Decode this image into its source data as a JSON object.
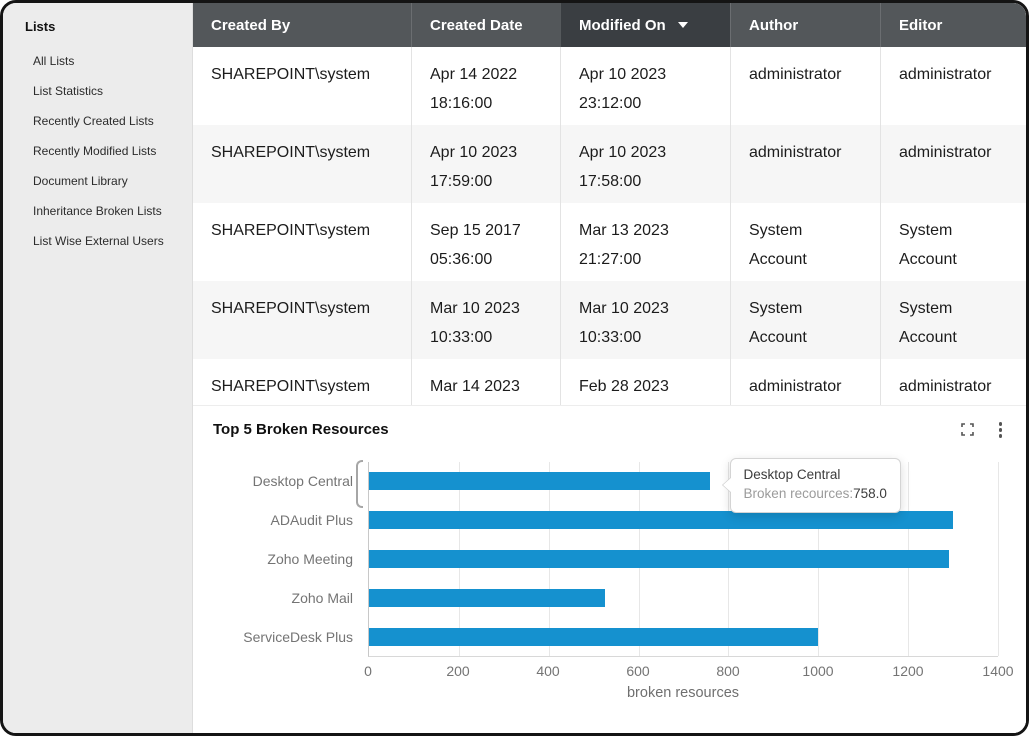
{
  "sidebar": {
    "title": "Lists",
    "items": [
      "All Lists",
      "List Statistics",
      "Recently Created Lists",
      "Recently Modified Lists",
      "Document Library",
      "Inheritance Broken Lists",
      "List Wise External Users"
    ]
  },
  "table": {
    "columns": [
      "Created By",
      "Created Date",
      "Modified On",
      "Author",
      "Editor"
    ],
    "sorted_column": "Modified On",
    "sort_indicator": "▼",
    "rows": [
      {
        "created_by": "SHAREPOINT\\system",
        "created_date": "Apr 14 2022",
        "created_time": "18:16:00",
        "modified_date": "Apr 10 2023",
        "modified_time": "23:12:00",
        "author": "administrator",
        "editor": "administrator"
      },
      {
        "created_by": "SHAREPOINT\\system",
        "created_date": "Apr 10 2023",
        "created_time": "17:59:00",
        "modified_date": "Apr 10 2023",
        "modified_time": "17:58:00",
        "author": "administrator",
        "editor": "administrator"
      },
      {
        "created_by": "SHAREPOINT\\system",
        "created_date": "Sep 15 2017",
        "created_time": "05:36:00",
        "modified_date": "Mar 13 2023",
        "modified_time": "21:27:00",
        "author": "System Account",
        "editor": "System Account"
      },
      {
        "created_by": "SHAREPOINT\\system",
        "created_date": "Mar 10 2023",
        "created_time": "10:33:00",
        "modified_date": "Mar 10 2023",
        "modified_time": "10:33:00",
        "author": "System Account",
        "editor": "System Account"
      },
      {
        "created_by": "SHAREPOINT\\system",
        "created_date": "Mar 14 2023",
        "created_time": "",
        "modified_date": "Feb 28 2023",
        "modified_time": "",
        "author": "administrator",
        "editor": "administrator"
      }
    ]
  },
  "chart": {
    "title": "Top 5 Broken Resources",
    "icons": {
      "expand": "expand-icon",
      "menu": "kebab-menu-icon"
    },
    "tooltip": {
      "title": "Desktop Central",
      "label": "Broken recources:",
      "value": "758.0"
    }
  },
  "chart_data": {
    "type": "bar",
    "orientation": "horizontal",
    "title": "Top 5 Broken Resources",
    "categories": [
      "Desktop Central",
      "ADAudit Plus",
      "Zoho Meeting",
      "Zoho Mail",
      "ServiceDesk Plus"
    ],
    "values": [
      758,
      1300,
      1290,
      525,
      1000
    ],
    "xlabel": "broken resources",
    "xlim": [
      0,
      1400
    ],
    "xticks": [
      0,
      200,
      400,
      600,
      800,
      1000,
      1200,
      1400
    ],
    "bar_color": "#1591cf",
    "grid": true,
    "legend": false
  },
  "colors": {
    "bar": "#1591cf",
    "table_header_bg": "#53575a",
    "sorted_header_bg": "#3a3e42",
    "sidebar_bg": "#ececec",
    "row_alt_bg": "#f6f6f6"
  }
}
